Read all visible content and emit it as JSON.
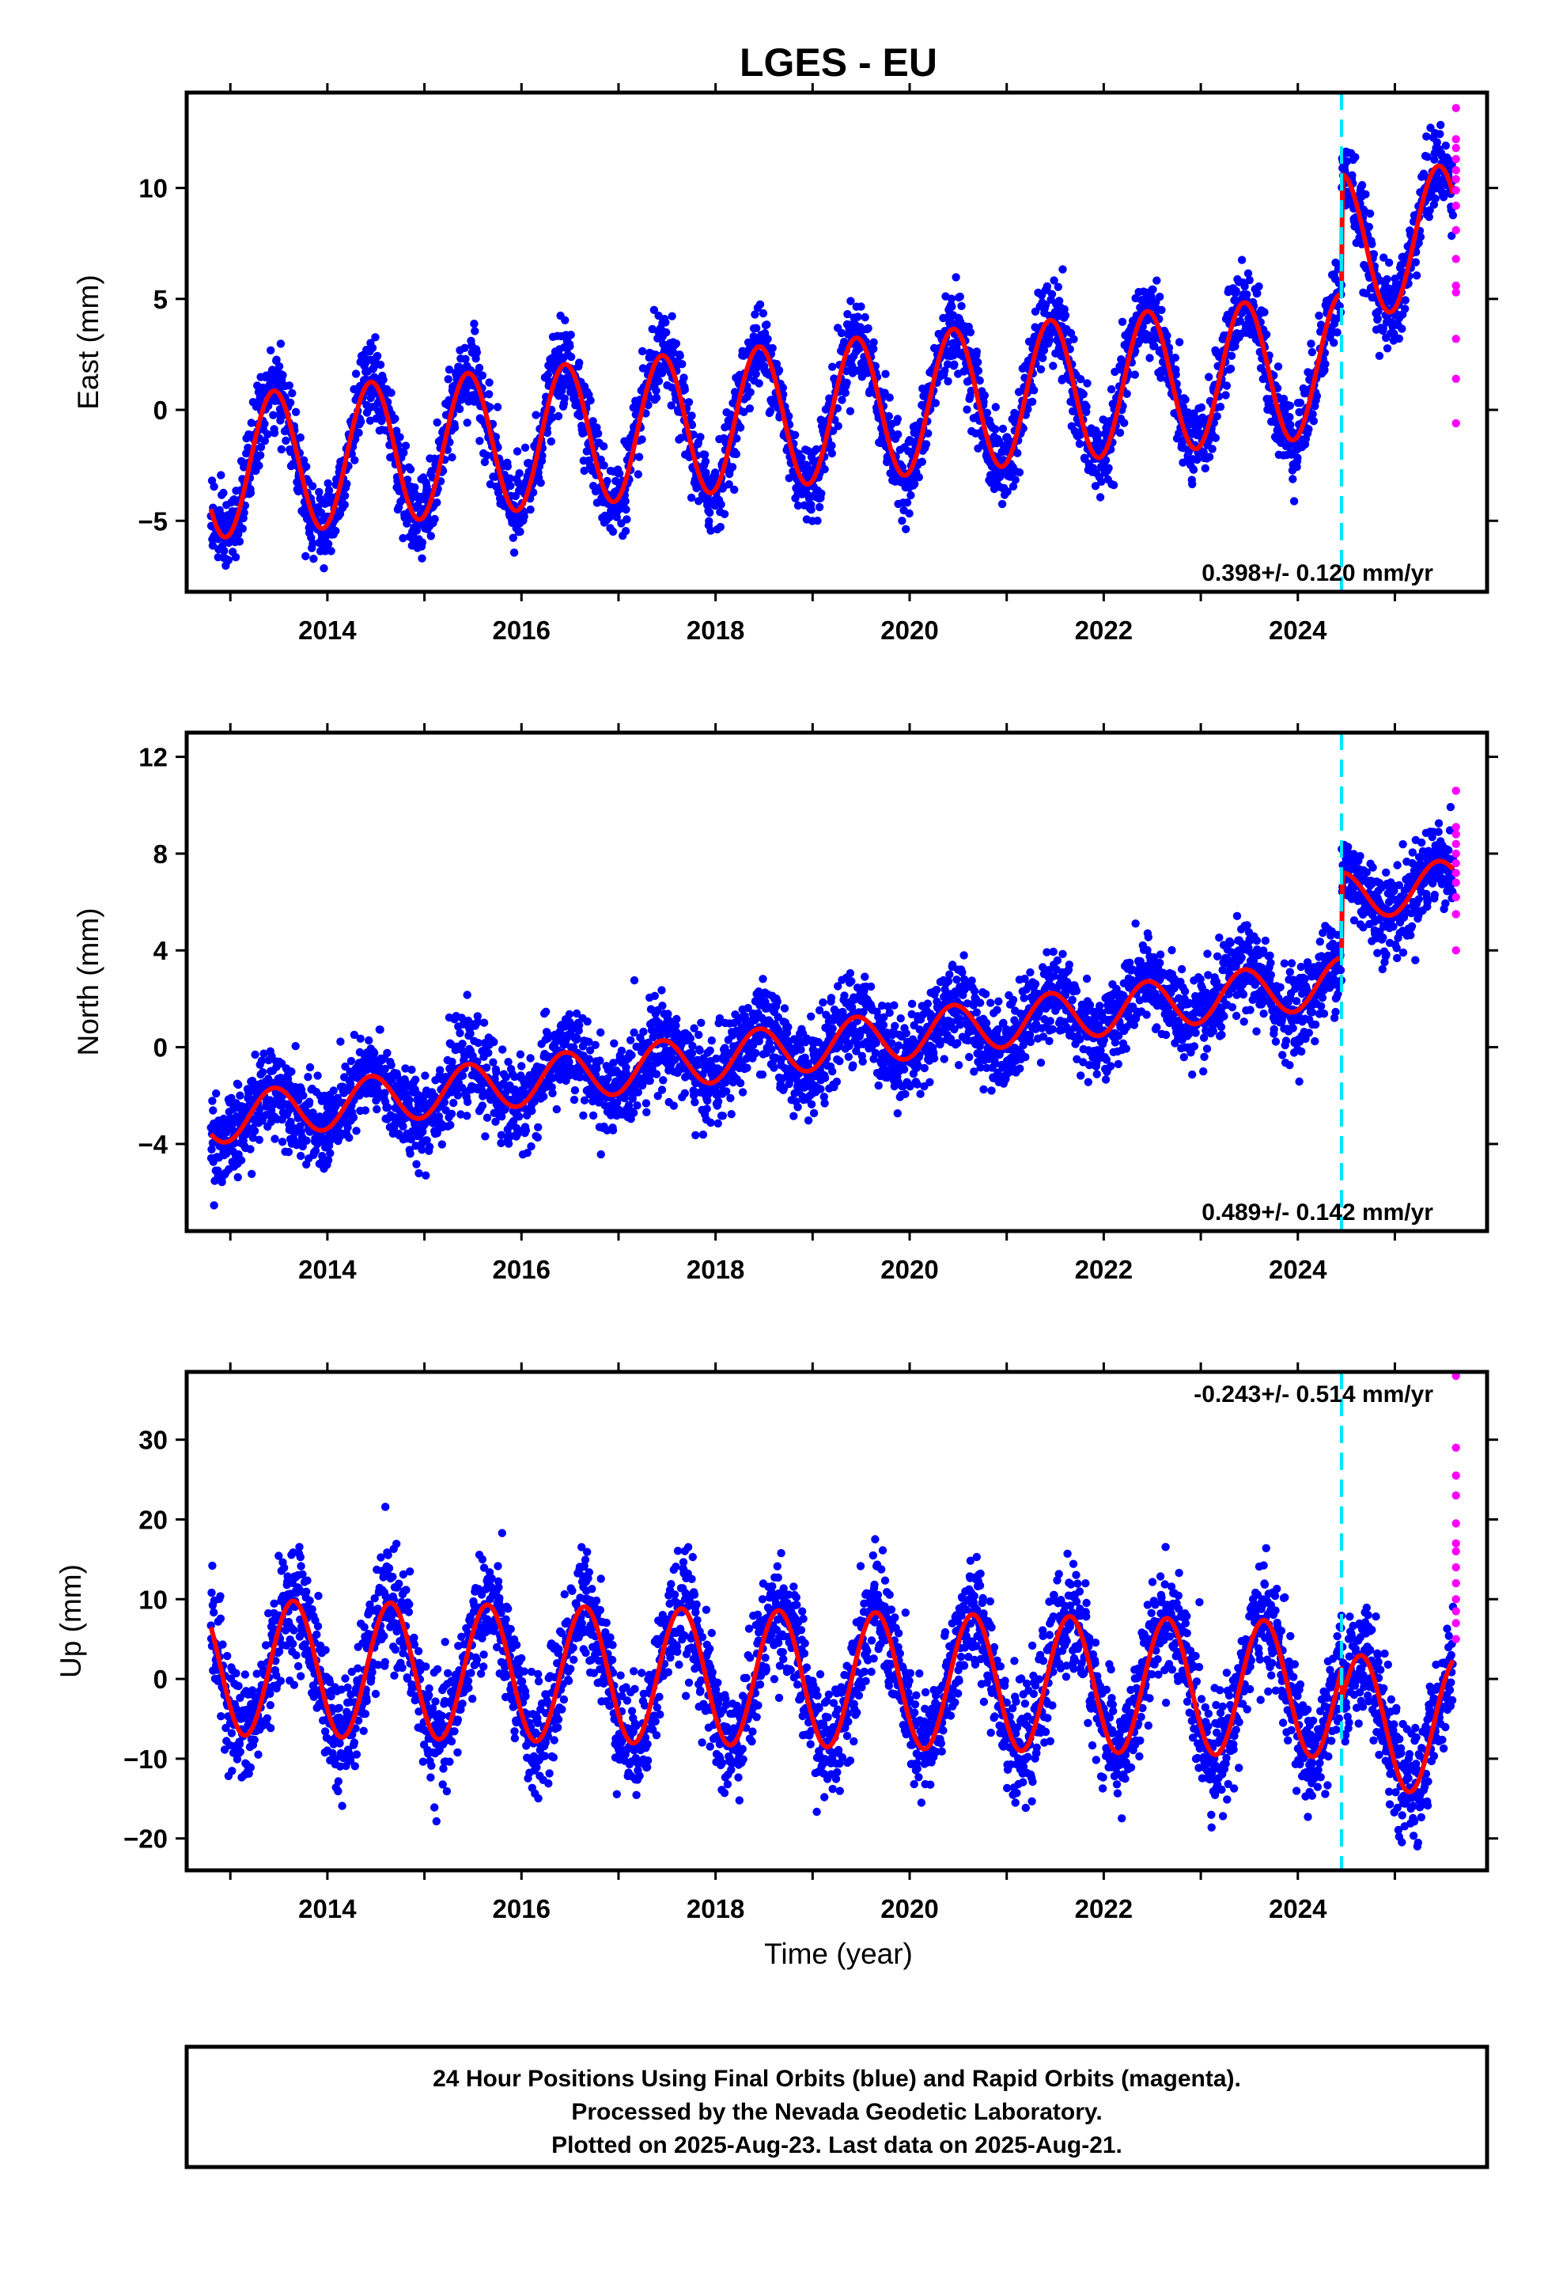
{
  "title": "LGES - EU",
  "x_axis_label": "Time (year)",
  "x_ticks": [
    "2014",
    "2016",
    "2018",
    "2020",
    "2022",
    "2024"
  ],
  "caption_lines": [
    "24 Hour Positions Using Final Orbits (blue) and Rapid Orbits (magenta).",
    "Processed by the Nevada Geodetic Laboratory.",
    "Plotted on 2025-Aug-23. Last data on 2025-Aug-21."
  ],
  "colors": {
    "final_orbits": "#0000ff",
    "rapid_orbits": "#ff00ff",
    "model_fit": "#ff0000",
    "equipment_change": "#00e5ff"
  },
  "chart_data": [
    {
      "type": "scatter",
      "name": "east",
      "ylabel": "East (mm)",
      "rate_label": "0.398+/- 0.120 mm/yr",
      "xlim": [
        2012.55,
        2025.95
      ],
      "ylim": [
        -8.2,
        14.3
      ],
      "yticks": [
        -5,
        0,
        5,
        10
      ],
      "ytick_labels": [
        "−5",
        "0",
        "5",
        "10"
      ],
      "grid": false,
      "vertical_line_x": 2024.45,
      "series": [
        {
          "role": "final",
          "x_range": [
            2012.8,
            2025.6
          ],
          "seasonal_amp": 3.2,
          "noise_sd": 0.9,
          "segments": [
            {
              "from": 2012.8,
              "to": 2024.45,
              "y0": -2.6,
              "slope": 0.398
            },
            {
              "from": 2024.45,
              "to": 2025.6,
              "y0": 7.4,
              "slope": 0.398
            }
          ]
        },
        {
          "role": "rapid",
          "x": 2025.63,
          "y": [
            -0.6,
            1.4,
            3.2,
            5.3,
            5.6,
            6.8,
            8.1,
            9.2,
            9.9,
            10.4,
            10.8,
            11.3,
            11.8,
            12.2,
            13.6
          ]
        }
      ],
      "fit": {
        "phase_peak_year_fraction": 0.45
      }
    },
    {
      "type": "scatter",
      "name": "north",
      "ylabel": "North (mm)",
      "rate_label": "0.489+/- 0.142 mm/yr",
      "xlim": [
        2012.55,
        2025.95
      ],
      "ylim": [
        -7.6,
        13.0
      ],
      "yticks": [
        -4,
        0,
        4,
        8,
        12
      ],
      "ytick_labels": [
        "−4",
        "0",
        "4",
        "8",
        "12"
      ],
      "grid": false,
      "vertical_line_x": 2024.45,
      "series": [
        {
          "role": "final",
          "x_range": [
            2012.8,
            2025.6
          ],
          "seasonal_amp": 1.0,
          "noise_sd": 0.9,
          "segments": [
            {
              "from": 2012.8,
              "to": 2024.45,
              "y0": -3.0,
              "slope": 0.489
            },
            {
              "from": 2024.45,
              "to": 2025.6,
              "y0": 6.2,
              "slope": 0.489
            }
          ]
        },
        {
          "role": "rapid",
          "x": 2025.63,
          "y": [
            4.0,
            5.5,
            6.2,
            6.8,
            7.2,
            7.6,
            8.0,
            8.4,
            8.8,
            9.1,
            10.6
          ]
        }
      ],
      "fit": {
        "phase_peak_year_fraction": 0.45
      }
    },
    {
      "type": "scatter",
      "name": "up",
      "ylabel": "Up (mm)",
      "rate_label": "-0.243+/- 0.514 mm/yr",
      "xlim": [
        2012.55,
        2025.95
      ],
      "ylim": [
        -24.0,
        38.5
      ],
      "yticks": [
        -20,
        -10,
        0,
        10,
        20,
        30
      ],
      "ytick_labels": [
        "−20",
        "−10",
        "0",
        "10",
        "20",
        "30"
      ],
      "grid": false,
      "vertical_line_x": 2024.45,
      "series": [
        {
          "role": "final",
          "x_range": [
            2012.8,
            2025.6
          ],
          "seasonal_amp": 8.5,
          "noise_sd": 3.5,
          "segments": [
            {
              "from": 2012.8,
              "to": 2024.45,
              "y0": 1.5,
              "slope": -0.243
            },
            {
              "from": 2024.45,
              "to": 2025.6,
              "y0": -5.5,
              "slope": -0.243
            }
          ]
        },
        {
          "role": "rapid",
          "x": 2025.63,
          "y": [
            5.0,
            7.0,
            8.5,
            10.0,
            12.0,
            14.0,
            16.0,
            17.0,
            19.5,
            23.0,
            25.5,
            29.0,
            38.0
          ]
        }
      ],
      "fit": {
        "phase_peak_year_fraction": 0.65
      }
    }
  ]
}
